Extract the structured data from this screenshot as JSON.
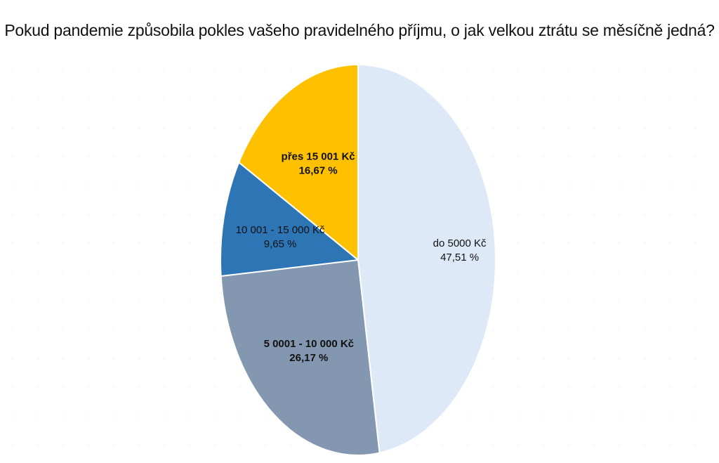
{
  "chart_data": {
    "type": "pie",
    "title": "Pokud pandemie způsobila pokles vašeho pravidelného příjmu, o jak velkou ztrátu se měsíčně jedná?",
    "slices": [
      {
        "label": "do 5000 Kč",
        "value": 47.51,
        "value_label": "47,51 %",
        "color": "#dde9f6",
        "bold": false
      },
      {
        "label": "5 0001 - 10 000 Kč",
        "value": 26.17,
        "value_label": "26,17 %",
        "color": "#8497b0",
        "bold": true
      },
      {
        "label": "10 001 - 15 000 Kč",
        "value": 9.65,
        "value_label": "9,65 %",
        "color": "#2e75b6",
        "bold": false
      },
      {
        "label": "přes 15 001 Kč",
        "value": 16.67,
        "value_label": "16,67 %",
        "color": "#ffc000",
        "bold": true
      }
    ],
    "start_angle": "12 o'clock",
    "direction": "clockwise",
    "legend": "none",
    "data_labels": "inside slices"
  }
}
